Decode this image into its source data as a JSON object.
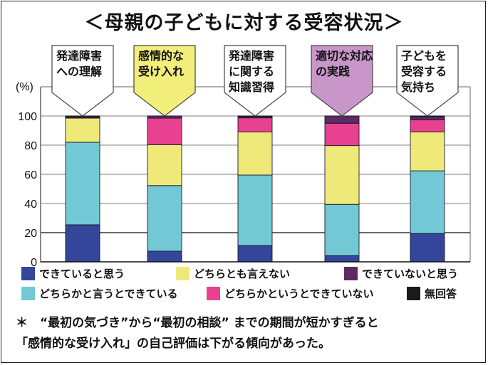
{
  "title": "＜母親の子どもに対する受容状況＞",
  "chart_data": {
    "type": "bar",
    "stacked": true,
    "title": "＜母親の子どもに対する受容状況＞",
    "xlabel": "",
    "ylabel": "(%)",
    "ylim": [
      0,
      100
    ],
    "yticks": [
      0,
      20,
      40,
      60,
      80,
      100
    ],
    "grid": true,
    "categories": [
      [
        "発達障害",
        "への理解"
      ],
      [
        "感情的な",
        "受け入れ"
      ],
      [
        "発達障害",
        "に関する",
        "知識習得"
      ],
      [
        "適切な対応",
        "の実践"
      ],
      [
        "子どもを",
        "受容する",
        "気持ち"
      ]
    ],
    "category_highlight": [
      "#ffffff",
      "#f2ee7a",
      "#ffffff",
      "#c996c9",
      "#ffffff"
    ],
    "series": [
      {
        "name": "できていると思う",
        "color": "#34469a",
        "values": [
          25.4,
          7.3,
          11.2,
          4.2,
          19.4
        ]
      },
      {
        "name": "どちらかと言うとできている",
        "color": "#72c8d4",
        "values": [
          56.6,
          45.0,
          48.3,
          35.2,
          43.0
        ]
      },
      {
        "name": "どちらとも言えない",
        "color": "#efe97a",
        "values": [
          16.5,
          28.0,
          29.5,
          40.3,
          26.7
        ]
      },
      {
        "name": "どちらかというとできていない",
        "color": "#e8418f",
        "values": [
          0.5,
          18.2,
          9.7,
          15.3,
          8.3
        ]
      },
      {
        "name": "できていないと思う",
        "color": "#5e2a63",
        "values": [
          0.8,
          1.5,
          0.8,
          5.0,
          2.1
        ]
      },
      {
        "name": "無回答",
        "color": "#1a1a1a",
        "values": [
          0.2,
          0.0,
          0.5,
          0.0,
          0.5
        ]
      }
    ],
    "legend_position": "bottom"
  },
  "legend": [
    {
      "label": "できていると思う",
      "color": "#34469a"
    },
    {
      "label": "どちらとも言えない",
      "color": "#efe97a"
    },
    {
      "label": "できていないと思う",
      "color": "#5e2a63"
    },
    {
      "label": "どちらかと言うとできている",
      "color": "#72c8d4"
    },
    {
      "label": "どちらかというとできていない",
      "color": "#e8418f"
    },
    {
      "label": "無回答",
      "color": "#1a1a1a"
    }
  ],
  "note": {
    "line1": "＊　“最初の気づき”から“最初の相談” までの期間が短かすぎると",
    "line2": "「感情的な受け入れ」の自己評価は下がる傾向があった。"
  }
}
